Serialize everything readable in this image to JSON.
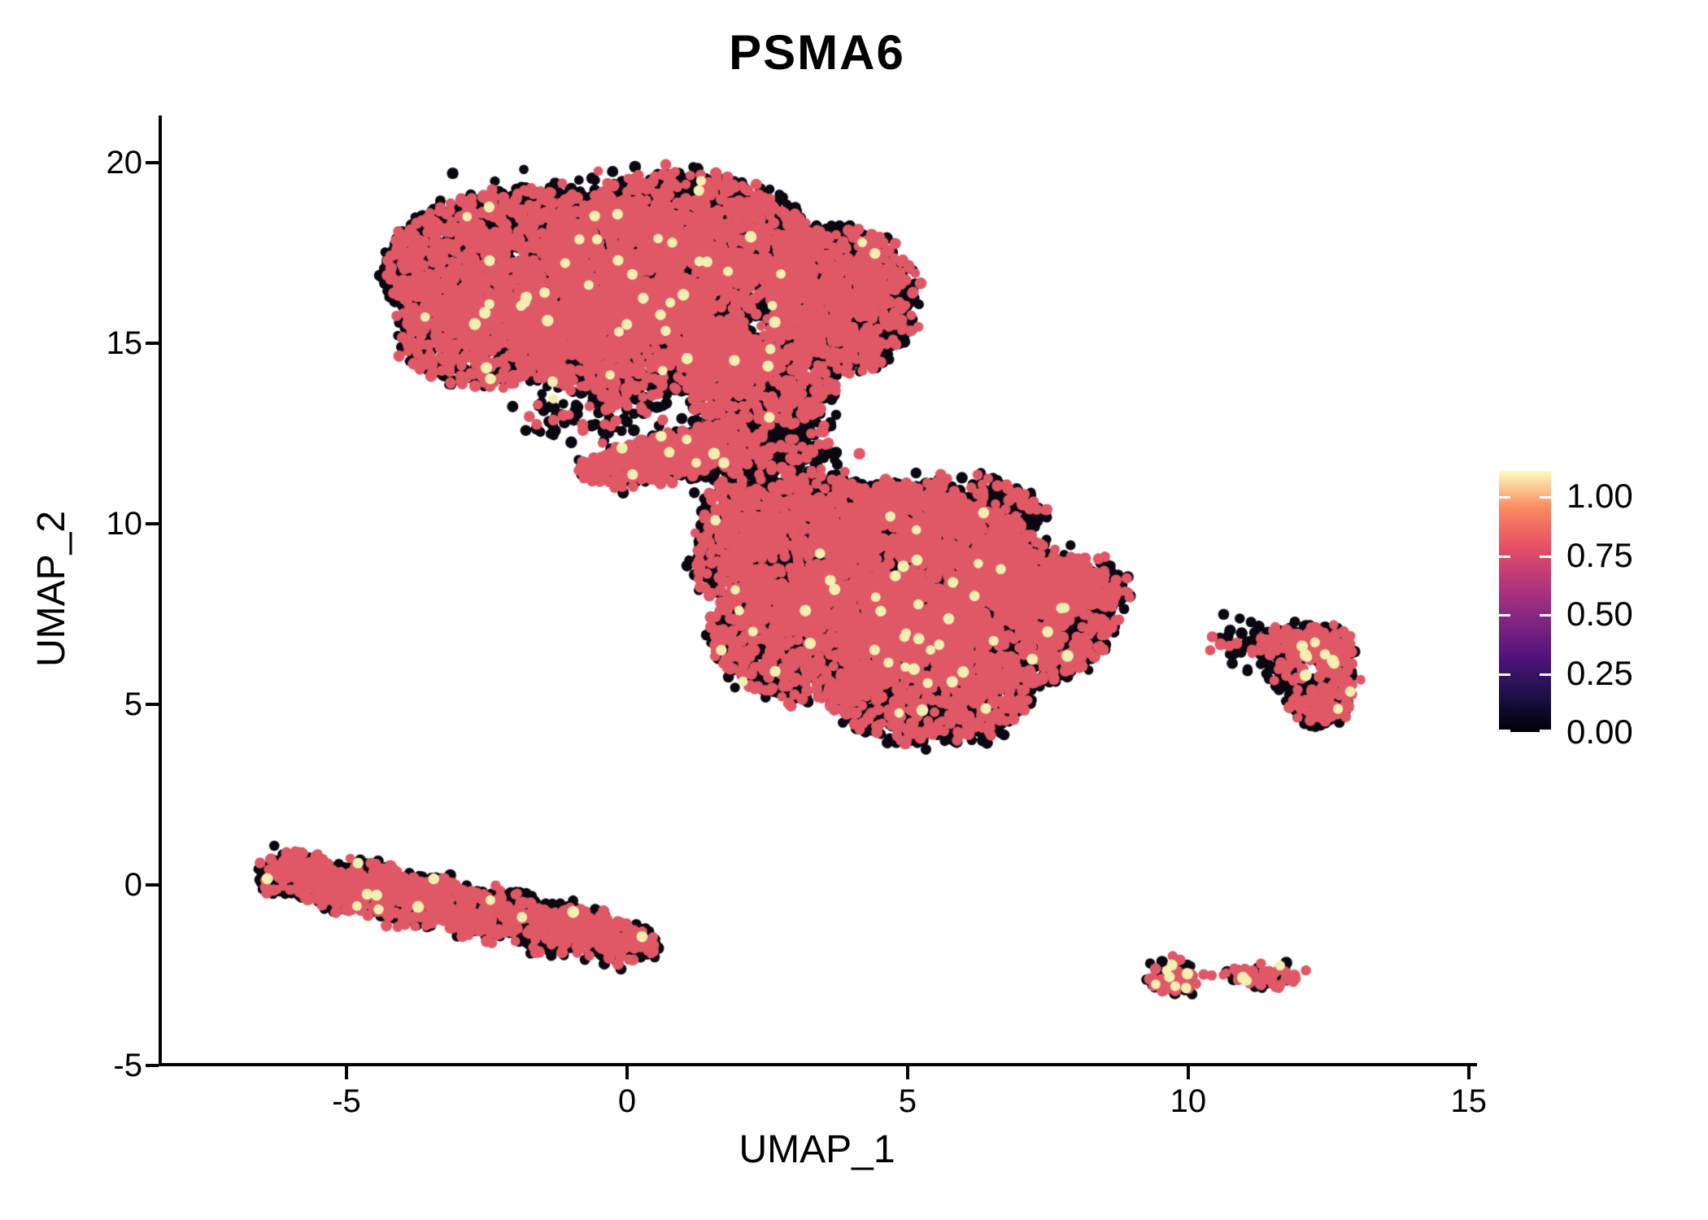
{
  "title": {
    "text": "PSMA6"
  },
  "axes": {
    "x": {
      "label": "UMAP_1",
      "tick_labels": [
        "-5",
        "0",
        "5",
        "10",
        "15"
      ],
      "tick_values": [
        -5,
        0,
        5,
        10,
        15
      ]
    },
    "y": {
      "label": "UMAP_2",
      "tick_labels": [
        "20",
        "15",
        "10",
        "5",
        "0",
        "-5"
      ],
      "tick_values": [
        20,
        15,
        10,
        5,
        0,
        -5
      ]
    }
  },
  "legend": {
    "tick_labels": [
      "1.00",
      "0.75",
      "0.50",
      "0.25",
      "0.00"
    ],
    "tick_values": [
      1.0,
      0.75,
      0.5,
      0.25,
      0.0
    ],
    "scale_max": 1.107,
    "gradient_bottom_to_top": [
      "#000004",
      "#1D1147",
      "#51127C",
      "#822681",
      "#B63679",
      "#E65164",
      "#FB8861",
      "#FCFDBF"
    ]
  },
  "colors": {
    "background": "#FFFFFF",
    "axis": "#000000",
    "text": "#000000"
  },
  "chart_data": {
    "type": "scatter",
    "title": "PSMA6",
    "xlabel": "UMAP_1",
    "ylabel": "UMAP_2",
    "xlim": [
      -8.32,
      15.09
    ],
    "ylim": [
      -4.93,
      21.31
    ],
    "x_ticks": [
      -5,
      0,
      5,
      10,
      15
    ],
    "y_ticks": [
      -5,
      0,
      5,
      10,
      15,
      20
    ],
    "grid": false,
    "legend_position": "right",
    "colorbar": {
      "min_value": 0.0,
      "max_tick": 1.0,
      "scale_max": 1.107,
      "colormap": "magma"
    },
    "point_style": {
      "radius_px_min": 5.8,
      "radius_px_max": 7.4,
      "colors": {
        "zero": "#0B0812",
        "mid": "#E05866",
        "high": "#F2EFB0"
      }
    },
    "default_mix": {
      "zero": 0.625,
      "mid": 0.37,
      "high": 0.005
    },
    "clusters": [
      {
        "name": "upper-left-cap",
        "blobs": [
          {
            "cx": -0.3,
            "cy": 17.0,
            "rx": 3.8,
            "ry": 2.9,
            "n": 330,
            "soft": true
          },
          {
            "cx": -1.3,
            "cy": 17.0,
            "rx": 3.05,
            "ry": 2.3,
            "n": 3600
          },
          {
            "cx": 1.0,
            "cy": 17.5,
            "rx": 2.3,
            "ry": 2.15,
            "n": 2600
          },
          {
            "cx": 3.8,
            "cy": 16.2,
            "rx": 1.3,
            "ry": 2.0,
            "n": 1500
          },
          {
            "cx": -2.3,
            "cy": 15.2,
            "rx": 1.8,
            "ry": 1.35,
            "n": 1000
          },
          {
            "cx": 0.2,
            "cy": 14.8,
            "rx": 2.2,
            "ry": 1.25,
            "n": 1000
          },
          {
            "cx": 2.4,
            "cy": 13.8,
            "rx": 1.3,
            "ry": 1.1,
            "n": 500
          },
          {
            "cx": 1.8,
            "cy": 14.6,
            "rx": 1.0,
            "ry": 0.9,
            "n": 500
          },
          {
            "cx": 0.65,
            "cy": 11.85,
            "rx": 1.55,
            "ry": 0.55,
            "rot": 18,
            "n": 650,
            "mix": {
              "zero": 0.52,
              "mid": 0.47,
              "high": 0.01
            }
          },
          {
            "cx": 2.3,
            "cy": 12.5,
            "rx": 1.3,
            "ry": 1.0,
            "n": 280,
            "soft": true,
            "mix": {
              "zero": 0.78,
              "mid": 0.215,
              "high": 0.005
            }
          },
          {
            "cx": -0.6,
            "cy": 13.0,
            "rx": 1.3,
            "ry": 0.6,
            "n": 90,
            "soft": true,
            "mix": {
              "zero": 0.78,
              "mid": 0.215,
              "high": 0.005
            }
          }
        ]
      },
      {
        "name": "central",
        "blobs": [
          {
            "cx": 5.0,
            "cy": 8.2,
            "rx": 3.3,
            "ry": 2.7,
            "n": 300,
            "soft": true
          },
          {
            "cx": 4.7,
            "cy": 8.7,
            "rx": 2.7,
            "ry": 2.3,
            "n": 3300
          },
          {
            "cx": 6.4,
            "cy": 7.4,
            "rx": 2.3,
            "ry": 2.0,
            "n": 2400
          },
          {
            "cx": 3.4,
            "cy": 6.9,
            "rx": 1.9,
            "ry": 1.8,
            "n": 1500
          },
          {
            "cx": 5.4,
            "cy": 5.3,
            "rx": 1.8,
            "ry": 1.35,
            "n": 900
          },
          {
            "cx": 7.9,
            "cy": 8.25,
            "rx": 1.05,
            "ry": 0.7,
            "n": 420
          },
          {
            "cx": 3.0,
            "cy": 10.3,
            "rx": 1.6,
            "ry": 1.05,
            "n": 650
          },
          {
            "cx": 5.7,
            "cy": 10.3,
            "rx": 1.7,
            "ry": 1.0,
            "n": 600
          },
          {
            "cx": 2.4,
            "cy": 11.8,
            "rx": 1.4,
            "ry": 0.9,
            "n": 260,
            "soft": true,
            "mix": {
              "zero": 0.78,
              "mid": 0.215,
              "high": 0.005
            }
          },
          {
            "cx": 1.9,
            "cy": 9.2,
            "rx": 0.7,
            "ry": 1.3,
            "n": 300
          }
        ]
      },
      {
        "name": "right-ring",
        "mix": {
          "zero": 0.67,
          "mid": 0.32,
          "high": 0.01
        },
        "blobs": [
          {
            "cx": 11.6,
            "cy": 6.75,
            "rx": 0.55,
            "ry": 0.3,
            "rot": 30,
            "n": 130
          },
          {
            "cx": 12.35,
            "cy": 6.65,
            "rx": 0.55,
            "ry": 0.5,
            "n": 210,
            "mix": {
              "zero": 0.53,
              "mid": 0.45,
              "high": 0.02
            }
          },
          {
            "cx": 12.65,
            "cy": 5.6,
            "rx": 0.3,
            "ry": 0.9,
            "n": 170
          },
          {
            "cx": 12.35,
            "cy": 4.95,
            "rx": 0.42,
            "ry": 0.5,
            "n": 150
          },
          {
            "cx": 11.85,
            "cy": 5.7,
            "rx": 0.3,
            "ry": 0.85,
            "rot": 20,
            "n": 130,
            "mix": {
              "zero": 0.82,
              "mid": 0.17,
              "high": 0.01
            }
          },
          {
            "cx": 10.95,
            "cy": 6.65,
            "rx": 0.5,
            "ry": 0.25,
            "n": 40,
            "soft": true,
            "mix": {
              "zero": 0.85,
              "mid": 0.15,
              "high": 0.0
            }
          }
        ]
      },
      {
        "name": "lower-left-streak",
        "blobs": [
          {
            "cx": -5.95,
            "cy": 0.3,
            "rx": 0.6,
            "ry": 0.55,
            "n": 280
          },
          {
            "cx": -4.85,
            "cy": -0.05,
            "rx": 0.9,
            "ry": 0.65,
            "n": 430
          },
          {
            "cx": -3.65,
            "cy": -0.45,
            "rx": 0.9,
            "ry": 0.65,
            "n": 430
          },
          {
            "cx": -2.4,
            "cy": -0.8,
            "rx": 0.9,
            "ry": 0.62,
            "n": 420
          },
          {
            "cx": -1.15,
            "cy": -1.2,
            "rx": 0.9,
            "ry": 0.58,
            "n": 400
          },
          {
            "cx": -0.1,
            "cy": -1.6,
            "rx": 0.62,
            "ry": 0.48,
            "n": 250
          }
        ]
      },
      {
        "name": "lower-right-small",
        "mix": {
          "zero": 0.43,
          "mid": 0.52,
          "high": 0.05
        },
        "blobs": [
          {
            "cx": 9.7,
            "cy": -2.6,
            "rx": 0.44,
            "ry": 0.37,
            "n": 80,
            "mix": {
              "zero": 0.33,
              "mid": 0.57,
              "high": 0.1
            }
          },
          {
            "cx": 10.42,
            "cy": -2.48,
            "rx": 0.06,
            "ry": 0.05,
            "n": 2,
            "mix": {
              "zero": 0.0,
              "mid": 1.0,
              "high": 0.0
            }
          },
          {
            "cx": 10.95,
            "cy": -2.47,
            "rx": 0.3,
            "ry": 0.17,
            "n": 30
          },
          {
            "cx": 11.3,
            "cy": -2.62,
            "rx": 0.3,
            "ry": 0.15,
            "n": 28
          },
          {
            "cx": 11.68,
            "cy": -2.5,
            "rx": 0.34,
            "ry": 0.18,
            "n": 32
          }
        ]
      },
      {
        "name": "isolated-point",
        "blobs": [
          {
            "cx": 6.43,
            "cy": 3.92,
            "rx": 0.03,
            "ry": 0.03,
            "n": 1,
            "mix": {
              "zero": 1.0,
              "mid": 0.0,
              "high": 0.0
            }
          }
        ]
      }
    ]
  }
}
